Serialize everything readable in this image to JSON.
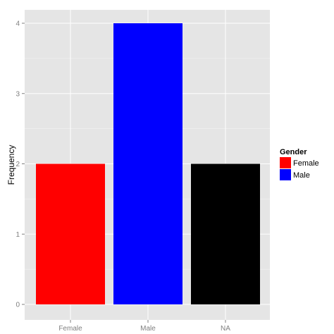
{
  "chart_data": {
    "type": "bar",
    "categories": [
      "Female",
      "Male",
      "NA"
    ],
    "values": [
      2,
      4,
      2
    ],
    "bar_colors": [
      "#ff0000",
      "#0000ff",
      "#000000"
    ],
    "xlabel": "",
    "ylabel": "Frequency",
    "ylim": [
      0,
      4.2
    ],
    "yticks": [
      0,
      1,
      2,
      3,
      4
    ],
    "grid": true,
    "panel_background": "#e5e5e5",
    "grid_color": "#ffffff",
    "legend": {
      "title": "Gender",
      "placement": "right",
      "entries": [
        {
          "label": "Female",
          "color": "#ff0000"
        },
        {
          "label": "Male",
          "color": "#0000ff"
        }
      ]
    }
  }
}
